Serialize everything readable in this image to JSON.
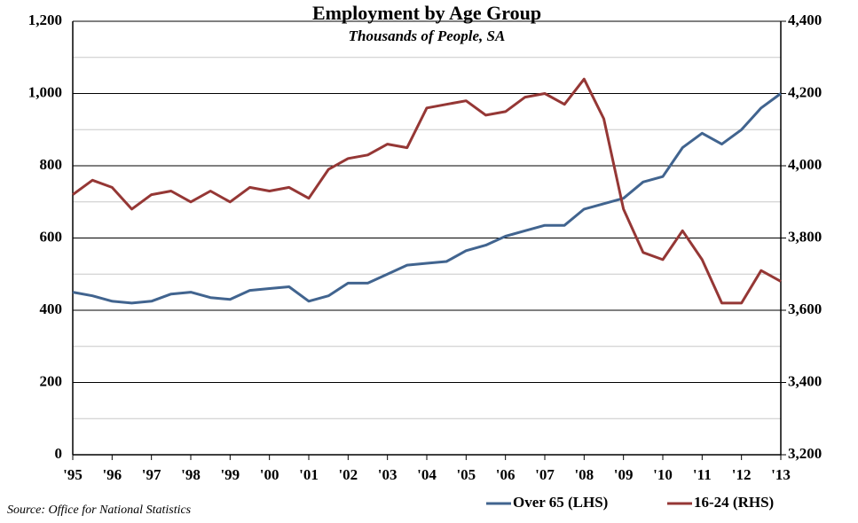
{
  "chart_data": {
    "type": "line",
    "title": "Employment by Age Group",
    "subtitle": "Thousands of People, SA",
    "source": "Source: Office for National Statistics",
    "x": [
      1995,
      1995.5,
      1996,
      1996.5,
      1997,
      1997.5,
      1998,
      1998.5,
      1999,
      1999.5,
      2000,
      2000.5,
      2001,
      2001.5,
      2002,
      2002.5,
      2003,
      2003.5,
      2004,
      2004.5,
      2005,
      2005.5,
      2006,
      2006.5,
      2007,
      2007.5,
      2008,
      2008.5,
      2009,
      2009.5,
      2010,
      2010.5,
      2011,
      2011.5,
      2012,
      2012.5,
      2013
    ],
    "xlim": [
      1995,
      2013
    ],
    "xticks": [
      {
        "value": 1995,
        "label": "'95"
      },
      {
        "value": 1996,
        "label": "'96"
      },
      {
        "value": 1997,
        "label": "'97"
      },
      {
        "value": 1998,
        "label": "'98"
      },
      {
        "value": 1999,
        "label": "'99"
      },
      {
        "value": 2000,
        "label": "'00"
      },
      {
        "value": 2001,
        "label": "'01"
      },
      {
        "value": 2002,
        "label": "'02"
      },
      {
        "value": 2003,
        "label": "'03"
      },
      {
        "value": 2004,
        "label": "'04"
      },
      {
        "value": 2005,
        "label": "'05"
      },
      {
        "value": 2006,
        "label": "'06"
      },
      {
        "value": 2007,
        "label": "'07"
      },
      {
        "value": 2008,
        "label": "'08"
      },
      {
        "value": 2009,
        "label": "'09"
      },
      {
        "value": 2010,
        "label": "'10"
      },
      {
        "value": 2011,
        "label": "'11"
      },
      {
        "value": 2012,
        "label": "'12"
      },
      {
        "value": 2013,
        "label": "'13"
      }
    ],
    "ylim": [
      0,
      1200
    ],
    "yticks": [
      0,
      200,
      400,
      600,
      800,
      {
        "value": 1000,
        "label": "1,000"
      },
      {
        "value": 1200,
        "label": "1,200"
      }
    ],
    "minor_yticks": [
      100,
      300,
      500,
      700,
      900,
      1100
    ],
    "y2lim": [
      3200,
      4400
    ],
    "y2ticks": [
      {
        "value": 3200,
        "label": "3,200"
      },
      {
        "value": 3400,
        "label": "3,400"
      },
      {
        "value": 3600,
        "label": "3,600"
      },
      {
        "value": 3800,
        "label": "3,800"
      },
      {
        "value": 4000,
        "label": "4,000"
      },
      {
        "value": 4200,
        "label": "4,200"
      },
      {
        "value": 4400,
        "label": "4,400"
      }
    ],
    "grid": true,
    "legend": "bottom-right",
    "series": [
      {
        "name": "Over 65 (LHS)",
        "color": "#41648f",
        "axis": "y",
        "values": [
          450,
          440,
          425,
          420,
          425,
          445,
          450,
          435,
          430,
          455,
          460,
          465,
          425,
          440,
          475,
          475,
          500,
          525,
          530,
          535,
          565,
          580,
          605,
          620,
          635,
          635,
          680,
          695,
          710,
          755,
          770,
          850,
          890,
          860,
          900,
          960,
          1000
        ]
      },
      {
        "name": "16-24 (RHS)",
        "color": "#953735",
        "axis": "y2",
        "values": [
          3920,
          3960,
          3940,
          3880,
          3920,
          3930,
          3900,
          3930,
          3900,
          3940,
          3930,
          3940,
          3910,
          3990,
          4020,
          4030,
          4060,
          4050,
          4160,
          4170,
          4180,
          4140,
          4150,
          4190,
          4200,
          4170,
          4240,
          4130,
          3880,
          3760,
          3740,
          3820,
          3740,
          3620,
          3620,
          3710,
          3680
        ]
      }
    ]
  }
}
